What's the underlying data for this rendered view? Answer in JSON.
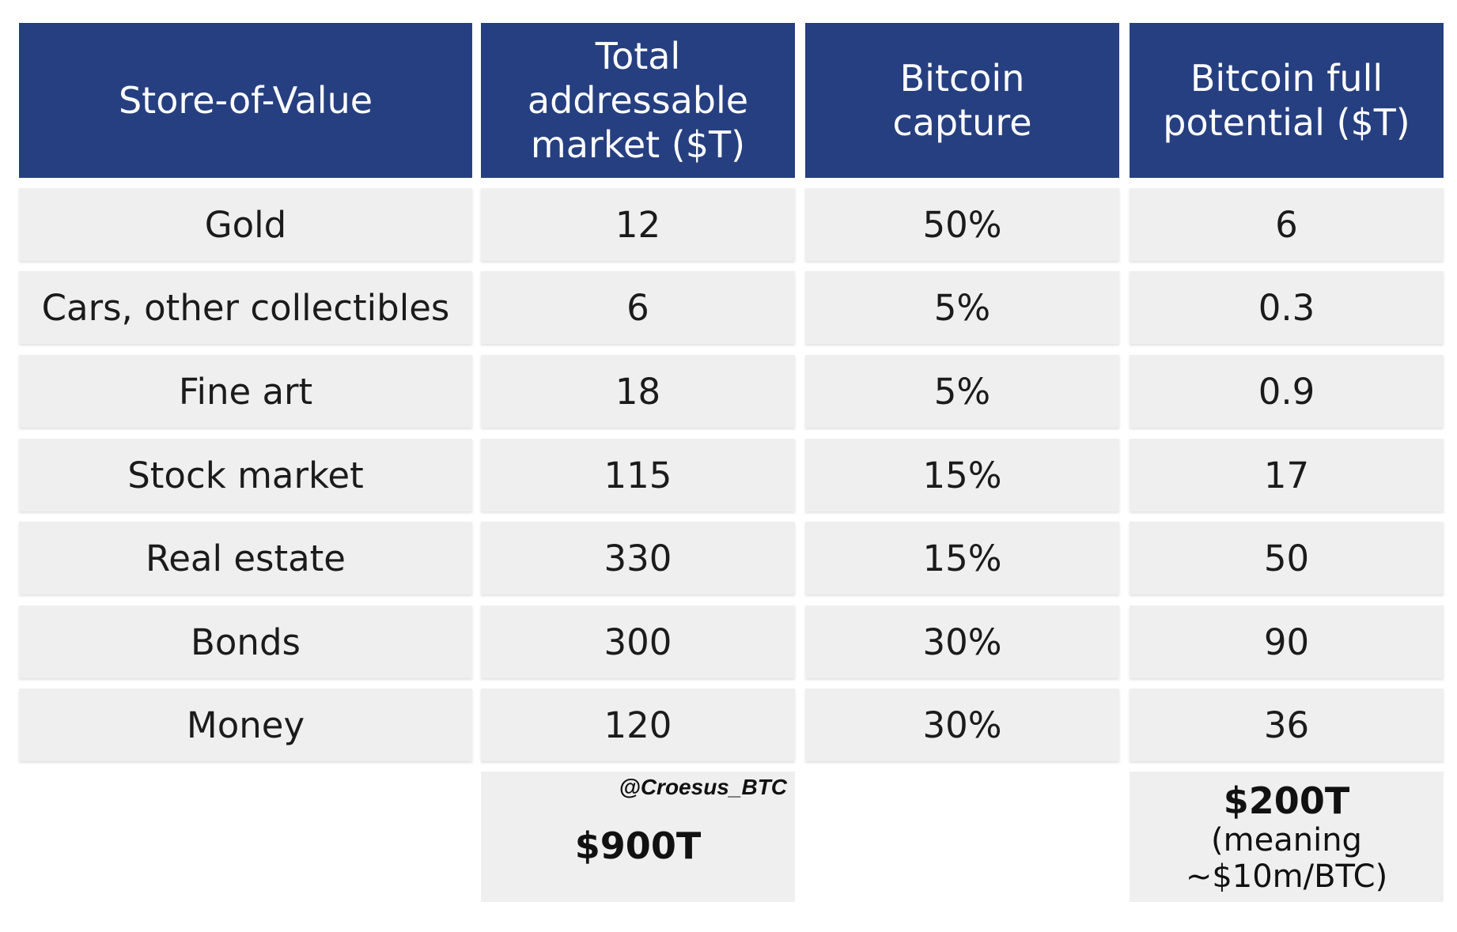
{
  "table": {
    "headers": [
      [
        "Store-of-Value"
      ],
      [
        "Total",
        "addressable",
        "market ($T)"
      ],
      [
        "Bitcoin",
        "capture"
      ],
      [
        "Bitcoin full",
        "potential ($T)"
      ]
    ],
    "rows": [
      [
        "Gold",
        "12",
        "50%",
        "6"
      ],
      [
        "Cars, other collectibles",
        "6",
        "5%",
        "0.3"
      ],
      [
        "Fine art",
        "18",
        "5%",
        "0.9"
      ],
      [
        "Stock market",
        "115",
        "15%",
        "17"
      ],
      [
        "Real estate",
        "330",
        "15%",
        "50"
      ],
      [
        "Bonds",
        "300",
        "30%",
        "90"
      ],
      [
        "Money",
        "120",
        "30%",
        "36"
      ]
    ],
    "totals": {
      "credit": "@Croesus_BTC",
      "total_market": "$900T",
      "full_potential": "$200T",
      "full_potential_note_1": "(meaning",
      "full_potential_note_2": "~$10m/BTC)"
    }
  },
  "colors": {
    "header_bg": "#263f80",
    "cell_bg": "#efefef"
  }
}
